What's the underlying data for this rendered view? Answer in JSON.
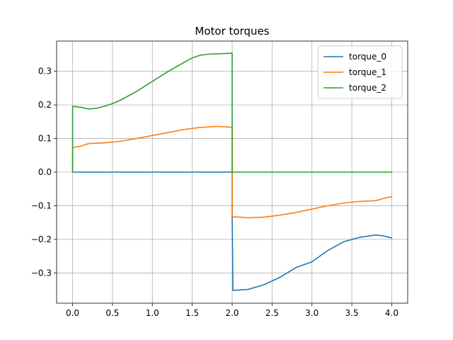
{
  "chart_data": {
    "type": "line",
    "title": "Motor torques",
    "xlabel": "",
    "ylabel": "",
    "xlim": [
      -0.2,
      4.2
    ],
    "ylim": [
      -0.39,
      0.39
    ],
    "xticks": [
      0.0,
      0.5,
      1.0,
      1.5,
      2.0,
      2.5,
      3.0,
      3.5,
      4.0
    ],
    "xtick_labels": [
      "0.0",
      "0.5",
      "1.0",
      "1.5",
      "2.0",
      "2.5",
      "3.0",
      "3.5",
      "4.0"
    ],
    "yticks": [
      -0.3,
      -0.2,
      -0.1,
      0.0,
      0.1,
      0.2,
      0.3
    ],
    "ytick_labels": [
      "−0.3",
      "−0.2",
      "−0.1",
      "0.0",
      "0.1",
      "0.2",
      "0.3"
    ],
    "grid": true,
    "legend_position": "top-right",
    "series": [
      {
        "name": "torque_0",
        "color": "#1f77b4",
        "x": [
          0.0,
          2.0,
          2.0,
          2.01,
          2.2,
          2.4,
          2.6,
          2.8,
          3.0,
          3.2,
          3.4,
          3.6,
          3.8,
          3.9,
          4.0
        ],
        "y": [
          0.0,
          0.0,
          -0.13,
          -0.352,
          -0.349,
          -0.335,
          -0.313,
          -0.284,
          -0.267,
          -0.233,
          -0.207,
          -0.194,
          -0.187,
          -0.19,
          -0.196
        ]
      },
      {
        "name": "torque_1",
        "color": "#ff7f0e",
        "x": [
          0.0,
          0.0,
          0.1,
          0.2,
          0.4,
          0.6,
          0.8,
          1.0,
          1.2,
          1.4,
          1.6,
          1.8,
          1.9,
          2.0,
          2.0,
          2.0,
          2.1,
          2.2,
          2.4,
          2.6,
          2.8,
          3.0,
          3.2,
          3.4,
          3.6,
          3.8,
          3.9,
          4.0
        ],
        "y": [
          0.0,
          0.073,
          0.077,
          0.085,
          0.087,
          0.092,
          0.1,
          0.109,
          0.118,
          0.127,
          0.133,
          0.136,
          0.135,
          0.133,
          0.0,
          -0.133,
          -0.134,
          -0.136,
          -0.134,
          -0.128,
          -0.12,
          -0.11,
          -0.1,
          -0.092,
          -0.087,
          -0.085,
          -0.078,
          -0.073
        ]
      },
      {
        "name": "torque_2",
        "color": "#2ca02c",
        "x": [
          0.0,
          0.0,
          0.1,
          0.2,
          0.3,
          0.4,
          0.5,
          0.6,
          0.8,
          1.0,
          1.2,
          1.4,
          1.5,
          1.6,
          1.7,
          1.8,
          2.0,
          2.0,
          4.0
        ],
        "y": [
          0.0,
          0.196,
          0.193,
          0.188,
          0.19,
          0.196,
          0.204,
          0.214,
          0.24,
          0.27,
          0.3,
          0.327,
          0.34,
          0.348,
          0.351,
          0.352,
          0.354,
          0.0,
          0.0
        ]
      }
    ]
  }
}
